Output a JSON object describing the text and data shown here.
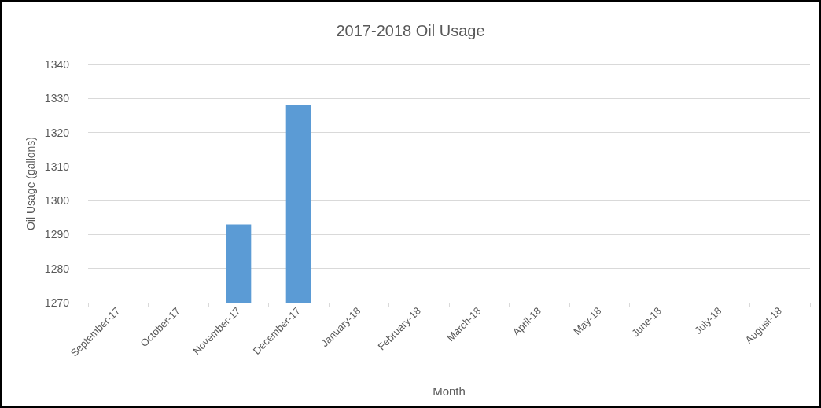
{
  "chart_data": {
    "type": "bar",
    "title": "2017-2018 Oil Usage",
    "xlabel": "Month",
    "ylabel": "Oil Usage (gallons)",
    "categories": [
      "September-17",
      "October-17",
      "November-17",
      "December-17",
      "January-18",
      "February-18",
      "March-18",
      "April-18",
      "May-18",
      "June-18",
      "July-18",
      "August-18"
    ],
    "values": [
      null,
      null,
      1293,
      1328,
      null,
      null,
      null,
      null,
      null,
      null,
      null,
      null
    ],
    "color": "#5b9bd5",
    "ylim": [
      1270,
      1340
    ],
    "yticks": [
      1270,
      1280,
      1290,
      1300,
      1310,
      1320,
      1330,
      1340
    ],
    "grid": "y"
  }
}
